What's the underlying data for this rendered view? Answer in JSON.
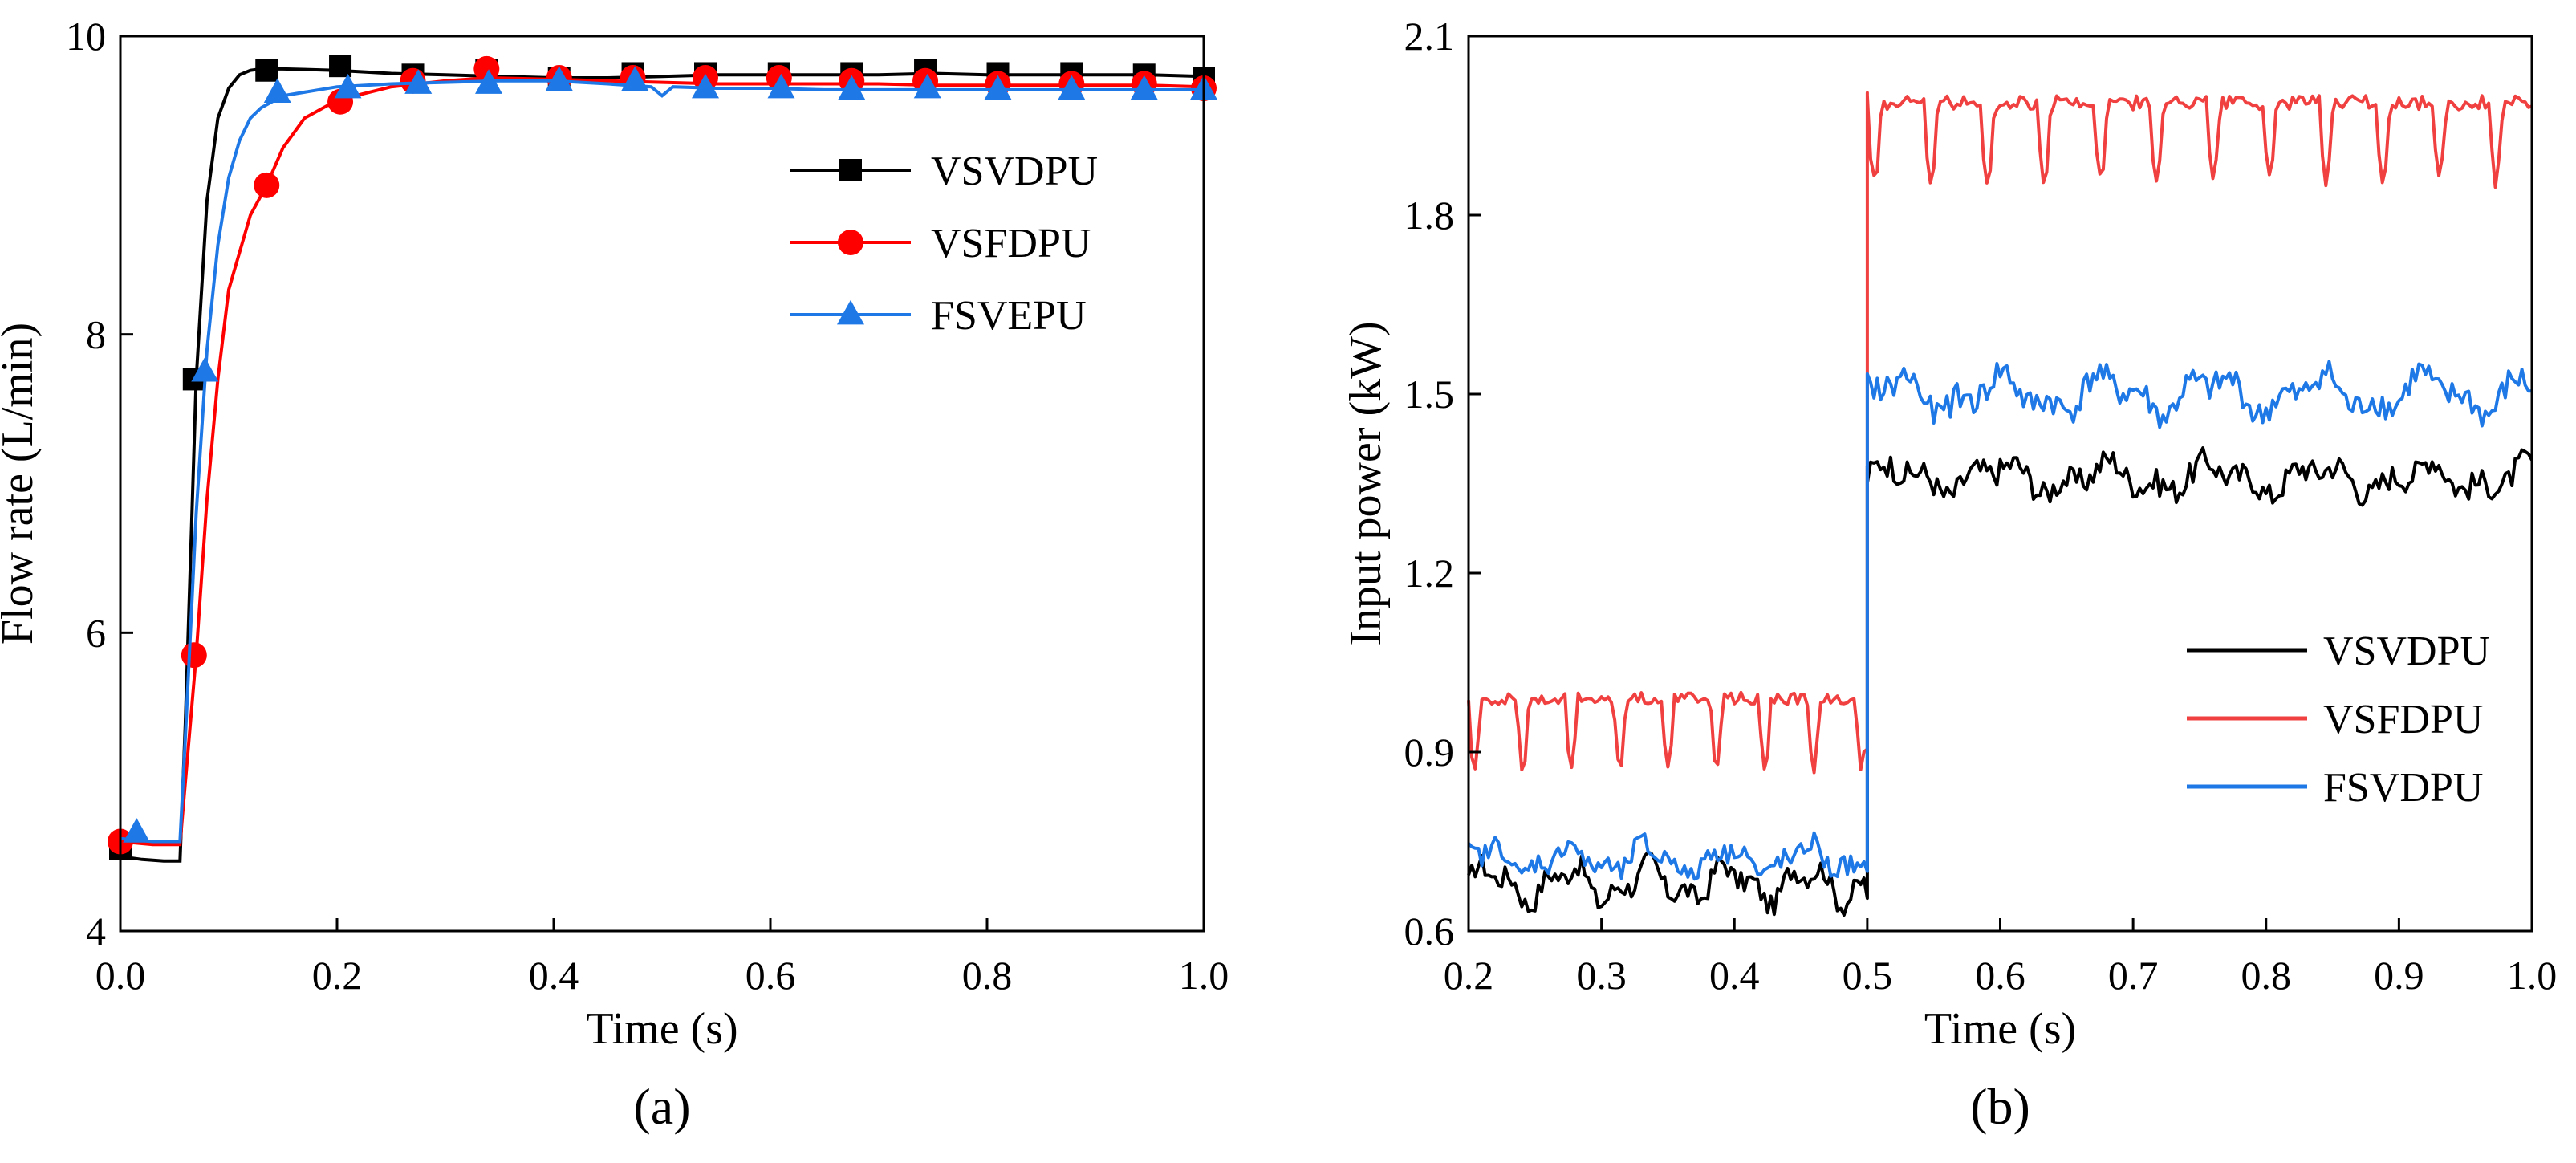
{
  "chart_data": [
    {
      "type": "line",
      "panel_label": "(a)",
      "xlabel": "Time (s)",
      "ylabel": "Flow rate (L/min)",
      "xlim": [
        0.0,
        1.0
      ],
      "ylim": [
        4,
        10
      ],
      "xticks": [
        "0.0",
        "0.2",
        "0.4",
        "0.6",
        "0.8",
        "1.0"
      ],
      "yticks": [
        "4",
        "6",
        "8",
        "10"
      ],
      "legend_position": "top-right",
      "series": [
        {
          "name": "VSVDPU",
          "color": "#000000",
          "marker": "square",
          "x": [
            0.0,
            0.02,
            0.04,
            0.055,
            0.06,
            0.07,
            0.08,
            0.09,
            0.1,
            0.11,
            0.12,
            0.13,
            0.15,
            0.2,
            0.25,
            0.3,
            0.35,
            0.4,
            0.45,
            0.5,
            0.55,
            0.6,
            0.65,
            0.7,
            0.75,
            0.8,
            0.85,
            0.9,
            0.95,
            1.0
          ],
          "y": [
            4.5,
            4.48,
            4.47,
            4.47,
            5.4,
            7.7,
            8.9,
            9.45,
            9.65,
            9.74,
            9.77,
            9.78,
            9.78,
            9.77,
            9.75,
            9.74,
            9.73,
            9.72,
            9.72,
            9.73,
            9.74,
            9.74,
            9.74,
            9.74,
            9.75,
            9.74,
            9.74,
            9.74,
            9.74,
            9.73
          ],
          "marker_x": [
            0.0,
            0.068,
            0.135,
            0.203,
            0.27,
            0.338,
            0.405,
            0.473,
            0.54,
            0.608,
            0.675,
            0.743,
            0.81,
            0.878,
            0.945,
            1.0
          ],
          "marker_y": [
            4.55,
            7.7,
            9.77,
            9.8,
            9.74,
            9.77,
            9.72,
            9.75,
            9.75,
            9.75,
            9.75,
            9.77,
            9.75,
            9.75,
            9.74,
            9.72
          ]
        },
        {
          "name": "VSFDPU",
          "color": "#ff0000",
          "marker": "circle",
          "x": [
            0.0,
            0.03,
            0.055,
            0.06,
            0.07,
            0.08,
            0.09,
            0.1,
            0.12,
            0.135,
            0.15,
            0.17,
            0.2,
            0.25,
            0.3,
            0.34,
            0.4,
            0.45,
            0.5,
            0.55,
            0.6,
            0.65,
            0.7,
            0.75,
            0.8,
            0.85,
            0.9,
            0.95,
            1.0
          ],
          "y": [
            4.6,
            4.58,
            4.58,
            5.0,
            5.85,
            6.9,
            7.7,
            8.3,
            8.8,
            9.0,
            9.25,
            9.45,
            9.57,
            9.66,
            9.7,
            9.72,
            9.71,
            9.7,
            9.69,
            9.68,
            9.68,
            9.68,
            9.68,
            9.67,
            9.67,
            9.67,
            9.67,
            9.67,
            9.66
          ],
          "marker_x": [
            0.0,
            0.068,
            0.135,
            0.203,
            0.27,
            0.338,
            0.405,
            0.473,
            0.54,
            0.608,
            0.675,
            0.743,
            0.81,
            0.878,
            0.945,
            1.0
          ],
          "marker_y": [
            4.6,
            5.85,
            9.0,
            9.56,
            9.7,
            9.78,
            9.72,
            9.72,
            9.72,
            9.72,
            9.7,
            9.7,
            9.68,
            9.68,
            9.68,
            9.65
          ]
        },
        {
          "name": "FSVEPU",
          "color": "#1e78e6",
          "marker": "triangle",
          "x": [
            0.0,
            0.03,
            0.055,
            0.06,
            0.07,
            0.08,
            0.09,
            0.1,
            0.11,
            0.12,
            0.13,
            0.15,
            0.2,
            0.25,
            0.3,
            0.35,
            0.4,
            0.45,
            0.49,
            0.5,
            0.51,
            0.55,
            0.6,
            0.65,
            0.7,
            0.75,
            0.8,
            0.85,
            0.9,
            0.95,
            1.0
          ],
          "y": [
            4.62,
            4.6,
            4.6,
            5.3,
            6.8,
            7.9,
            8.6,
            9.05,
            9.3,
            9.45,
            9.52,
            9.6,
            9.66,
            9.68,
            9.69,
            9.7,
            9.7,
            9.68,
            9.66,
            9.6,
            9.66,
            9.65,
            9.65,
            9.64,
            9.64,
            9.64,
            9.64,
            9.64,
            9.64,
            9.64,
            9.64
          ],
          "marker_x": [
            0.015,
            0.078,
            0.145,
            0.21,
            0.275,
            0.34,
            0.405,
            0.475,
            0.54,
            0.61,
            0.675,
            0.745,
            0.81,
            0.878,
            0.945,
            1.0
          ],
          "marker_y": [
            4.66,
            7.75,
            9.62,
            9.65,
            9.68,
            9.68,
            9.7,
            9.7,
            9.65,
            9.65,
            9.64,
            9.65,
            9.64,
            9.64,
            9.64,
            9.64
          ]
        }
      ]
    },
    {
      "type": "line",
      "panel_label": "(b)",
      "xlabel": "Time (s)",
      "ylabel": "Input power (kW)",
      "xlim": [
        0.2,
        1.0
      ],
      "ylim": [
        0.6,
        2.1
      ],
      "xticks": [
        "0.2",
        "0.3",
        "0.4",
        "0.5",
        "0.6",
        "0.7",
        "0.8",
        "0.9",
        "1.0"
      ],
      "yticks": [
        "0.6",
        "0.9",
        "1.2",
        "1.5",
        "1.8",
        "2.1"
      ],
      "legend_position": "lower-right",
      "series": [
        {
          "name": "VSVDPU",
          "color": "#000000",
          "step_at": 0.5,
          "before": {
            "mean": 0.68,
            "amp": 0.025,
            "noise": 0.018,
            "period": 0.06
          },
          "after": {
            "mean": 1.36,
            "amp": 0.02,
            "noise": 0.022,
            "period": 0.08
          }
        },
        {
          "name": "VSFDPU",
          "color": "#f04040",
          "step_at": 0.5,
          "before": {
            "mean": 0.955,
            "amp": 0.05,
            "noise": 0.01,
            "period": 0.0364
          },
          "after": {
            "mean": 1.95,
            "amp": 0.055,
            "noise": 0.012,
            "period": 0.0425
          }
        },
        {
          "name": "FSVDPU",
          "color": "#1e78e6",
          "step_at": 0.5,
          "before": {
            "mean": 0.72,
            "amp": 0.02,
            "noise": 0.018,
            "period": 0.06
          },
          "after": {
            "mean": 1.5,
            "amp": 0.025,
            "noise": 0.024,
            "period": 0.08
          }
        }
      ]
    }
  ]
}
